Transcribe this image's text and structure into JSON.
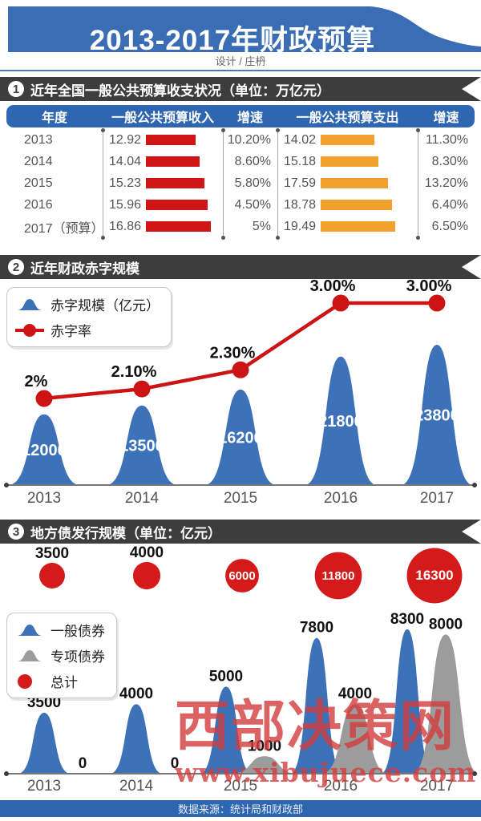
{
  "title": "2013-2017年财政预算",
  "credit": "设计 / 庄枬",
  "footer": {
    "source": "数据来源：统计局和财政部"
  },
  "watermark": {
    "name": "西部决策网",
    "url": "www.xibujuece.com"
  },
  "sections": [
    {
      "num": "1",
      "title": "近年全国一般公共预算收支状况（单位：万亿元）"
    },
    {
      "num": "2",
      "title": "近年财政赤字规模"
    },
    {
      "num": "3",
      "title": "地方债发行规模（单位：亿元）"
    }
  ],
  "colors": {
    "banner_blue": "#3a6db3",
    "table_blue": "#2e66b1",
    "ribbon_dark": "#3d3d3d",
    "income_red": "#cf1515",
    "expense_orange": "#f0a02c",
    "peak_blue": "#3d72b8",
    "peak_gray": "#9c9c9c",
    "line_red": "#cc1414",
    "bubble_red": "#d41a1a",
    "axis_gray": "#777777",
    "label_dark": "#111111",
    "year_gray": "#555555",
    "watermark_red": "#d23c3c"
  },
  "chart_data": [
    {
      "type": "table",
      "title": "近年全国一般公共预算收支状况（单位：万亿元）",
      "unit": "万亿元",
      "columns": [
        "年度",
        "一般公共预算收入",
        "增速",
        "一般公共预算支出",
        "增速"
      ],
      "rows": [
        [
          "2013",
          "12.92",
          "10.20%",
          "14.02",
          "11.30%"
        ],
        [
          "2014",
          "14.04",
          "8.60%",
          "15.18",
          "8.30%"
        ],
        [
          "2015",
          "15.23",
          "5.80%",
          "17.59",
          "13.20%"
        ],
        [
          "2016",
          "15.96",
          "4.50%",
          "18.78",
          "6.40%"
        ],
        [
          "2017（预算）",
          "16.86",
          "5%",
          "19.49",
          "6.50%"
        ]
      ]
    },
    {
      "type": "area",
      "title": "近年财政赤字规模",
      "categories": [
        "2013",
        "2014",
        "2015",
        "2016",
        "2017"
      ],
      "series": [
        {
          "name": "赤字规模（亿元）",
          "kind": "peak",
          "color": "blue",
          "values": [
            12000,
            13500,
            16200,
            21800,
            23800
          ]
        },
        {
          "name": "赤字率",
          "kind": "line",
          "color": "red",
          "values": [
            2,
            2.1,
            2.3,
            3,
            3
          ],
          "labels": [
            "2%",
            "2.10%",
            "2.30%",
            "3.00%",
            "3.00%"
          ]
        }
      ],
      "legend_position": "top-left"
    },
    {
      "type": "area",
      "title": "地方债发行规模（单位：亿元）",
      "unit": "亿元",
      "categories": [
        "2013",
        "2014",
        "2015",
        "2016",
        "2017"
      ],
      "series": [
        {
          "name": "一般债券",
          "kind": "peak",
          "color": "blue",
          "values": [
            3500,
            4000,
            5000,
            7800,
            8300
          ]
        },
        {
          "name": "专项债券",
          "kind": "peak",
          "color": "gray",
          "values": [
            0,
            0,
            1000,
            4000,
            8000
          ]
        },
        {
          "name": "总计",
          "kind": "bubble",
          "color": "red",
          "values": [
            3500,
            4000,
            6000,
            11800,
            16300
          ],
          "label_inside": [
            false,
            false,
            true,
            true,
            true
          ]
        }
      ],
      "legend_position": "middle-left"
    }
  ]
}
